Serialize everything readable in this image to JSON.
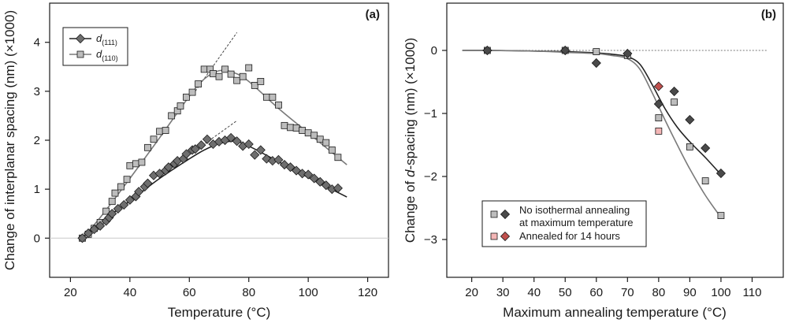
{
  "chart_data": [
    {
      "panel": "(a)",
      "type": "scatter",
      "xlabel": "Temperature (°C)",
      "ylabel": "Change of interplanar spacing (nm) (×1000)",
      "xlim": [
        13,
        127
      ],
      "ylim": [
        -0.8,
        4.8
      ],
      "xticks": [
        20,
        40,
        60,
        80,
        100,
        120
      ],
      "yticks": [
        0,
        1,
        2,
        3,
        4
      ],
      "grid": false,
      "legend_position": "top-left",
      "reference_line_y": 0,
      "series": [
        {
          "name": "d(111)",
          "name_main": "d",
          "name_sub": "(111)",
          "marker": "diamond",
          "color": "#6e6e6e",
          "line_color": "#222222",
          "x": [
            24,
            26,
            28,
            30,
            32,
            33,
            34,
            36,
            38,
            40,
            42,
            43,
            45,
            46,
            48,
            50,
            52,
            53,
            55,
            56,
            58,
            59,
            61,
            62,
            64,
            66,
            68,
            70,
            72,
            74,
            76,
            78,
            80,
            82,
            84,
            86,
            88,
            90,
            92,
            94,
            96,
            98,
            100,
            102,
            104,
            106,
            108,
            110
          ],
          "y": [
            0.0,
            0.1,
            0.18,
            0.25,
            0.35,
            0.42,
            0.5,
            0.6,
            0.68,
            0.78,
            0.85,
            0.95,
            1.05,
            1.12,
            1.28,
            1.32,
            1.38,
            1.45,
            1.52,
            1.58,
            1.62,
            1.72,
            1.8,
            1.82,
            1.9,
            2.02,
            1.92,
            1.97,
            2.0,
            2.05,
            1.98,
            1.88,
            1.92,
            1.7,
            1.8,
            1.62,
            1.58,
            1.6,
            1.5,
            1.45,
            1.38,
            1.32,
            1.3,
            1.22,
            1.15,
            1.08,
            1.0,
            1.02
          ]
        },
        {
          "name": "d(110)",
          "name_main": "d",
          "name_sub": "(110)",
          "marker": "square",
          "color": "#bdbdbd",
          "line_color": "#7a7a7a",
          "x": [
            24,
            26,
            28,
            30,
            32,
            34,
            35,
            37,
            39,
            40,
            42,
            44,
            46,
            48,
            50,
            52,
            54,
            56,
            57,
            59,
            61,
            63,
            65,
            67,
            68,
            70,
            72,
            74,
            76,
            78,
            80,
            82,
            84,
            86,
            88,
            90,
            92,
            94,
            96,
            98,
            100,
            102,
            104,
            106,
            108,
            110
          ],
          "y": [
            0.0,
            0.08,
            0.2,
            0.32,
            0.55,
            0.75,
            0.92,
            1.05,
            1.2,
            1.48,
            1.52,
            1.55,
            1.85,
            2.02,
            2.18,
            2.2,
            2.5,
            2.6,
            2.7,
            2.88,
            2.98,
            3.15,
            3.45,
            3.45,
            3.36,
            3.3,
            3.45,
            3.35,
            3.22,
            3.3,
            3.48,
            3.12,
            3.2,
            2.88,
            2.88,
            2.72,
            2.3,
            2.26,
            2.25,
            2.2,
            2.15,
            2.1,
            2.02,
            1.95,
            1.8,
            1.65
          ]
        }
      ],
      "fit_curves": [
        {
          "series": "d(111)",
          "x": [
            24,
            30,
            40,
            50,
            60,
            65,
            70,
            75,
            80,
            90,
            100,
            113
          ],
          "y": [
            0.0,
            0.32,
            0.76,
            1.22,
            1.62,
            1.8,
            1.93,
            1.98,
            1.88,
            1.56,
            1.24,
            0.84
          ]
        },
        {
          "series": "d(110)",
          "x": [
            24,
            30,
            40,
            50,
            60,
            65,
            70,
            75,
            80,
            90,
            100,
            113
          ],
          "y": [
            0.0,
            0.42,
            1.22,
            2.05,
            2.9,
            3.25,
            3.42,
            3.38,
            3.2,
            2.65,
            2.15,
            1.5
          ]
        }
      ],
      "tangent_lines": [
        {
          "series": "d(111)",
          "x": [
            60,
            76
          ],
          "y": [
            1.7,
            2.4
          ]
        },
        {
          "series": "d(110)",
          "x": [
            62,
            76
          ],
          "y": [
            3.0,
            4.2
          ]
        }
      ]
    },
    {
      "panel": "(b)",
      "type": "scatter",
      "xlabel_pre": "Maximum annealing temperature (°C)",
      "ylabel_pre": "Change of ",
      "ylabel_italic": "d",
      "ylabel_post": "-spacing (nm) (×1000)",
      "xlim": [
        12,
        120
      ],
      "ylim": [
        -3.6,
        0.75
      ],
      "xticks": [
        20,
        30,
        40,
        50,
        60,
        70,
        80,
        90,
        100,
        110
      ],
      "yticks": [
        0,
        -1,
        -2,
        -3
      ],
      "ytick_labels": [
        "0",
        "−1",
        "−2",
        "−3"
      ],
      "grid": false,
      "legend_position": "bottom-left",
      "reference_line_y": 0,
      "legend": [
        {
          "label_line1": "No isothermal annealing",
          "label_line2": "at maximum temperature"
        },
        {
          "label_line1": "Annealed for 14 hours",
          "label_line2": ""
        }
      ],
      "series": [
        {
          "name": "No isothermal annealing at maximum temperature (diamond)",
          "marker": "diamond",
          "color": "#4a4a4a",
          "x": [
            25,
            50,
            60,
            70,
            80,
            85,
            90,
            95,
            100
          ],
          "y": [
            0.0,
            0.0,
            -0.2,
            -0.05,
            -0.85,
            -0.65,
            -1.1,
            -1.55,
            -1.95
          ]
        },
        {
          "name": "No isothermal annealing at maximum temperature (square)",
          "marker": "square",
          "color": "#bdbdbd",
          "x": [
            25,
            50,
            60,
            70,
            80,
            85,
            90,
            95,
            100
          ],
          "y": [
            0.0,
            0.0,
            -0.02,
            -0.08,
            -1.07,
            -0.82,
            -1.53,
            -2.07,
            -2.62
          ]
        },
        {
          "name": "Annealed for 14 hours (diamond)",
          "marker": "diamond",
          "color": "#c0504d",
          "x": [
            80
          ],
          "y": [
            -0.57
          ]
        },
        {
          "name": "Annealed for 14 hours (square)",
          "marker": "square",
          "color": "#f4b6b6",
          "x": [
            80
          ],
          "y": [
            -1.28
          ]
        }
      ],
      "fit_curves": [
        {
          "x": [
            17,
            25,
            40,
            50,
            60,
            65,
            70,
            74,
            78,
            82,
            86,
            90,
            95,
            100
          ],
          "y": [
            0.0,
            0.0,
            -0.01,
            -0.02,
            -0.04,
            -0.06,
            -0.1,
            -0.22,
            -0.55,
            -0.92,
            -1.22,
            -1.45,
            -1.7,
            -1.97
          ],
          "color": "#222222"
        },
        {
          "x": [
            17,
            25,
            40,
            50,
            60,
            65,
            70,
            74,
            78,
            82,
            86,
            90,
            95,
            100
          ],
          "y": [
            0.0,
            0.0,
            -0.01,
            -0.03,
            -0.05,
            -0.08,
            -0.13,
            -0.3,
            -0.68,
            -1.1,
            -1.5,
            -1.88,
            -2.3,
            -2.65
          ],
          "color": "#7a7a7a"
        }
      ]
    }
  ]
}
